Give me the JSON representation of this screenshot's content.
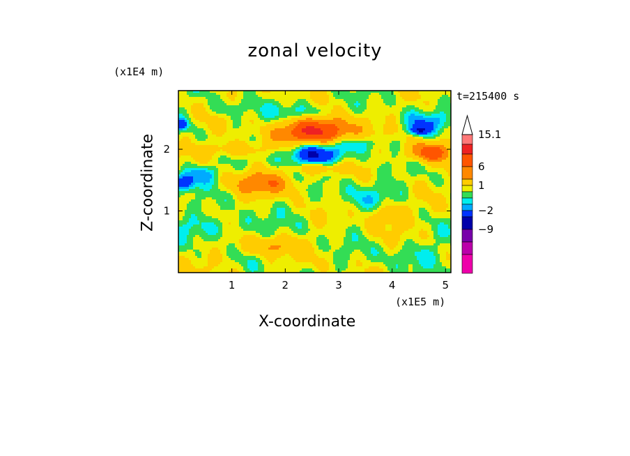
{
  "chart_data": {
    "type": "heatmap",
    "title": "zonal velocity",
    "xlabel": "X-coordinate",
    "ylabel": "Z-coordinate",
    "x_unit": "(x1E5 m)",
    "z_unit": "(x1E4 m)",
    "timestamp": "t=215400 s",
    "xlim": [
      0,
      5.1
    ],
    "ylim": [
      0,
      2.95
    ],
    "x_ticks": [
      "1",
      "2",
      "3",
      "4",
      "5"
    ],
    "y_ticks": [
      "1",
      "2"
    ],
    "colorbar": {
      "labels": [
        "15.1",
        "6",
        "1",
        "−2",
        "−9"
      ],
      "levels": [
        -12,
        -9,
        -6,
        -4,
        -2,
        -1,
        0,
        1,
        2,
        4,
        6,
        9,
        12,
        15.1
      ],
      "colors": [
        "#ee00aa",
        "#bb00aa",
        "#7700aa",
        "#0000aa",
        "#0033ff",
        "#00aaff",
        "#00eeee",
        "#33dd55",
        "#eeee00",
        "#ffcc00",
        "#ff8800",
        "#ff5500",
        "#ee2222",
        "#ff7777",
        "#ffaaaa"
      ]
    },
    "field_features": [
      {
        "x": 2.55,
        "z": 1.93,
        "value": -6,
        "sx": 0.55,
        "sz": 0.22
      },
      {
        "x": 2.6,
        "z": 2.28,
        "value": 9,
        "sx": 0.65,
        "sz": 0.22
      },
      {
        "x": 1.6,
        "z": 1.45,
        "value": 4,
        "sx": 0.6,
        "sz": 0.18
      },
      {
        "x": 1.7,
        "z": 0.42,
        "value": 3,
        "sx": 0.5,
        "sz": 0.15
      },
      {
        "x": 4.7,
        "z": 1.95,
        "value": 6,
        "sx": 0.4,
        "sz": 0.15
      },
      {
        "x": 2.6,
        "z": 1.7,
        "value": 4,
        "sx": 0.45,
        "sz": 0.1
      },
      {
        "x": 0.4,
        "z": 1.6,
        "value": -3,
        "sx": 0.35,
        "sz": 0.15
      },
      {
        "x": 0.1,
        "z": 1.45,
        "value": -5,
        "sx": 0.2,
        "sz": 0.12
      },
      {
        "x": 2.3,
        "z": 2.6,
        "value": -2.5,
        "sx": 0.5,
        "sz": 0.15
      },
      {
        "x": 4.6,
        "z": 2.45,
        "value": -2.5,
        "sx": 0.5,
        "sz": 0.14
      },
      {
        "x": 4.5,
        "z": 2.3,
        "value": -5,
        "sx": 0.2,
        "sz": 0.08
      },
      {
        "x": 3.4,
        "z": 2.1,
        "value": -2,
        "sx": 0.4,
        "sz": 0.12
      },
      {
        "x": 0.7,
        "z": 0.75,
        "value": -1.5,
        "sx": 1.0,
        "sz": 0.2
      },
      {
        "x": 3.6,
        "z": 1.2,
        "value": -1.5,
        "sx": 0.7,
        "sz": 0.3
      },
      {
        "x": 4.4,
        "z": 0.3,
        "value": -1.5,
        "sx": 0.6,
        "sz": 0.2
      },
      {
        "x": 3.9,
        "z": 0.95,
        "value": 3,
        "sx": 0.4,
        "sz": 0.2
      },
      {
        "x": 1.0,
        "z": 2.0,
        "value": 2.5,
        "sx": 0.6,
        "sz": 0.12
      },
      {
        "x": 0.05,
        "z": 2.4,
        "value": -4,
        "sx": 0.15,
        "sz": 0.1
      },
      {
        "x": 0.9,
        "z": 2.65,
        "value": -1.5,
        "sx": 0.3,
        "sz": 0.12
      }
    ]
  }
}
